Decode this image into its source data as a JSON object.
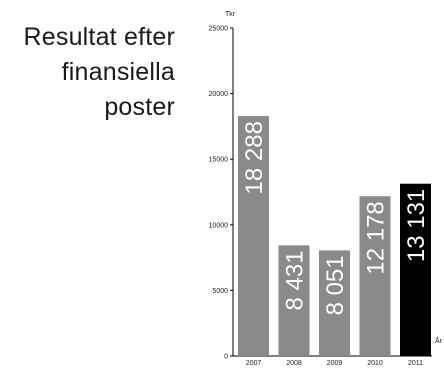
{
  "title_lines": [
    "Resultat efter",
    "finansiella",
    "poster"
  ],
  "chart_data": {
    "type": "bar",
    "title": "Resultat efter finansiella poster",
    "ylabel": "Tkr",
    "xlabel": "År",
    "categories": [
      "2007",
      "2008",
      "2009",
      "2010",
      "2011"
    ],
    "values": [
      18288,
      8431,
      8051,
      12178,
      13131
    ],
    "value_labels": [
      "18 288",
      "8 431",
      "8 051",
      "12 178",
      "13 131"
    ],
    "ylim": [
      0,
      25000
    ],
    "yticks": [
      "0",
      "5000",
      "10000",
      "15000",
      "20000",
      "25000"
    ],
    "ytick_values": [
      0,
      5000,
      10000,
      15000,
      20000,
      25000
    ],
    "bar_colors": [
      "#8a8a8a",
      "#8a8a8a",
      "#8a8a8a",
      "#8a8a8a",
      "#000000"
    ],
    "grid": false,
    "legend": "none"
  }
}
